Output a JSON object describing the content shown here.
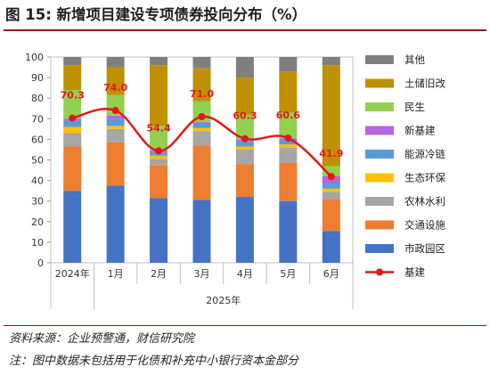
{
  "title": "图 15:  新增项目建设专项债券投向分布（%）",
  "notes": [
    "资料来源：企业预警通，财信研究院",
    "注：图中数据未包括用于化债和补充中小银行资本金部分"
  ],
  "colors": {
    "其他": "#7f7f7f",
    "土储旧改": "#bf9000",
    "民生": "#92d050",
    "新基建": "#b266e0",
    "能源冷链": "#5b9bd5",
    "生态环保": "#ffc000",
    "农林水利": "#a6a6a6",
    "交通设施": "#ed7d31",
    "市政园区": "#4472c4",
    "基建": "#e3171c"
  },
  "chart_data": {
    "type": "bar",
    "stacked": true,
    "categories": [
      "2024年",
      "1月",
      "2月",
      "3月",
      "4月",
      "5月",
      "6月"
    ],
    "group_label": "2025年",
    "ylim": [
      0,
      100
    ],
    "yticks": [
      0,
      10,
      20,
      30,
      40,
      50,
      60,
      70,
      80,
      90,
      100
    ],
    "grid": false,
    "legend_position": "right",
    "series": [
      {
        "name": "市政园区",
        "values": [
          35,
          37.5,
          31.5,
          30.5,
          32,
          30,
          15.5
        ]
      },
      {
        "name": "交通设施",
        "values": [
          21.5,
          21,
          16,
          26.5,
          16,
          18.5,
          15.5
        ]
      },
      {
        "name": "农林水利",
        "values": [
          6.5,
          6.5,
          3,
          7,
          7,
          7.5,
          3.5
        ]
      },
      {
        "name": "生态环保",
        "values": [
          3,
          1.5,
          1.5,
          1.5,
          1.5,
          1.5,
          1.5
        ]
      },
      {
        "name": "能源冷链",
        "values": [
          3,
          3.5,
          1.5,
          2.5,
          2.5,
          2,
          2.5
        ]
      },
      {
        "name": "新基建",
        "values": [
          1,
          1.5,
          1,
          0.5,
          1,
          1,
          3.5
        ]
      },
      {
        "name": "民生",
        "values": [
          14,
          10,
          12,
          10,
          12,
          12.5,
          5
        ]
      },
      {
        "name": "土储旧改",
        "values": [
          12,
          13.5,
          29.5,
          16,
          18,
          20,
          49
        ]
      },
      {
        "name": "其他",
        "values": [
          4,
          5,
          4,
          5.5,
          10,
          7,
          4
        ]
      }
    ],
    "line_series": {
      "name": "基建",
      "values": [
        70.3,
        74.0,
        54.4,
        71.0,
        60.3,
        60.6,
        41.9
      ]
    },
    "legend_order": [
      "其他",
      "土储旧改",
      "民生",
      "新基建",
      "能源冷链",
      "生态环保",
      "农林水利",
      "交通设施",
      "市政园区",
      "基建"
    ]
  }
}
